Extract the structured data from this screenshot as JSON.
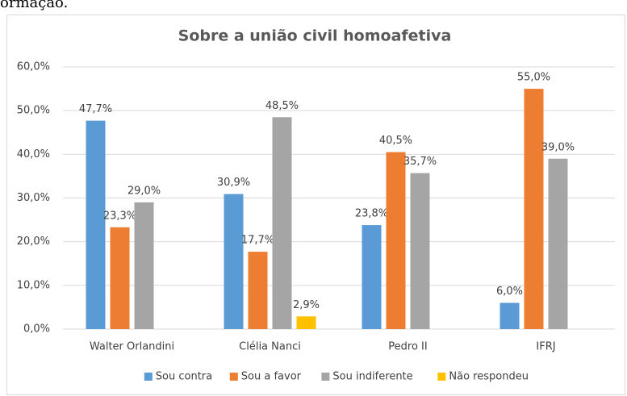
{
  "caption": "ormação.",
  "chart_data": {
    "type": "bar",
    "title": "Sobre a união civil homoafetiva",
    "categories": [
      "Walter Orlandini",
      "Clélia Nanci",
      "Pedro II",
      "IFRJ"
    ],
    "series": [
      {
        "name": "Sou contra",
        "color": "#5b9bd5",
        "values": [
          47.7,
          30.9,
          23.8,
          6.0
        ],
        "value_labels": [
          "47,7%",
          "30,9%",
          "23,8%",
          "6,0%"
        ]
      },
      {
        "name": "Sou a favor",
        "color": "#ed7d31",
        "values": [
          23.3,
          17.7,
          40.5,
          55.0
        ],
        "value_labels": [
          "23,3%",
          "17,7%",
          "40,5%",
          "55,0%"
        ]
      },
      {
        "name": "Sou indiferente",
        "color": "#a5a5a5",
        "values": [
          29.0,
          48.5,
          35.7,
          39.0
        ],
        "value_labels": [
          "29,0%",
          "48,5%",
          "35,7%",
          "39,0%"
        ]
      },
      {
        "name": "Não respondeu",
        "color": "#ffc000",
        "values": [
          null,
          2.9,
          null,
          null
        ],
        "value_labels": [
          null,
          "2,9%",
          null,
          null
        ]
      }
    ],
    "ylim": [
      0,
      60
    ],
    "yticks": [
      {
        "value": 0,
        "label": "0,0%"
      },
      {
        "value": 10,
        "label": "10,0%"
      },
      {
        "value": 20,
        "label": "20,0%"
      },
      {
        "value": 30,
        "label": "30,0%"
      },
      {
        "value": 40,
        "label": "40,0%"
      },
      {
        "value": 50,
        "label": "50,0%"
      },
      {
        "value": 60,
        "label": "60,0%"
      }
    ],
    "grid": true,
    "legend": "bottom"
  }
}
